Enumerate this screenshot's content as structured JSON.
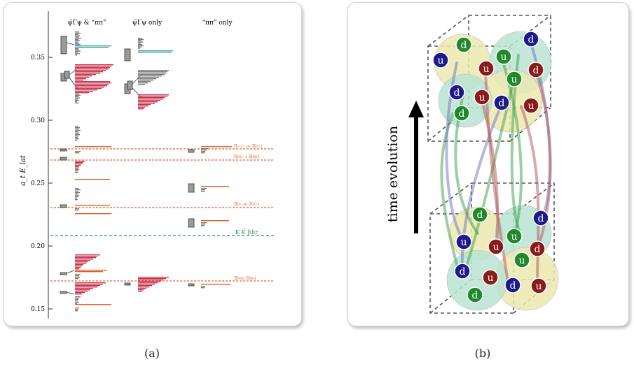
{
  "panel_a": {
    "caption": "(a)",
    "column_headers": [
      "ψ̄Γψ & “ππ”",
      "ψ̄Γψ only",
      "“ππ” only"
    ],
    "y_axis_label": "a_t E_lat",
    "y_ticks": [
      "0.35",
      "0.30",
      "0.25",
      "0.20",
      "0.15"
    ],
    "line_labels": [
      "π₋₁₋₁₀ π₁₁₁",
      "π₀₀₋₁ π₀₀₂",
      "π₀₋₁₀ π₀₁₁",
      "K K̄ |thr.",
      "π₀₀₀ π₀₀₁"
    ],
    "colors": {
      "threshold_orange": "#e0602a",
      "kkbar_green": "#3a8a55",
      "bar_red": "#c8324b",
      "bar_teal": "#3fa6a6",
      "box_gray": "#9a9a9a"
    }
  },
  "panel_b": {
    "caption": "(b)",
    "arrow_label": "time evolution",
    "quark_up": "u",
    "quark_down": "d",
    "colors": {
      "red_quark": "#8b1a1a",
      "green_quark": "#1f8a2a",
      "blue_quark": "#1f1a8b",
      "teal_hadron": "#b9e3d2",
      "yellow_hadron": "#ece9b0"
    }
  }
}
